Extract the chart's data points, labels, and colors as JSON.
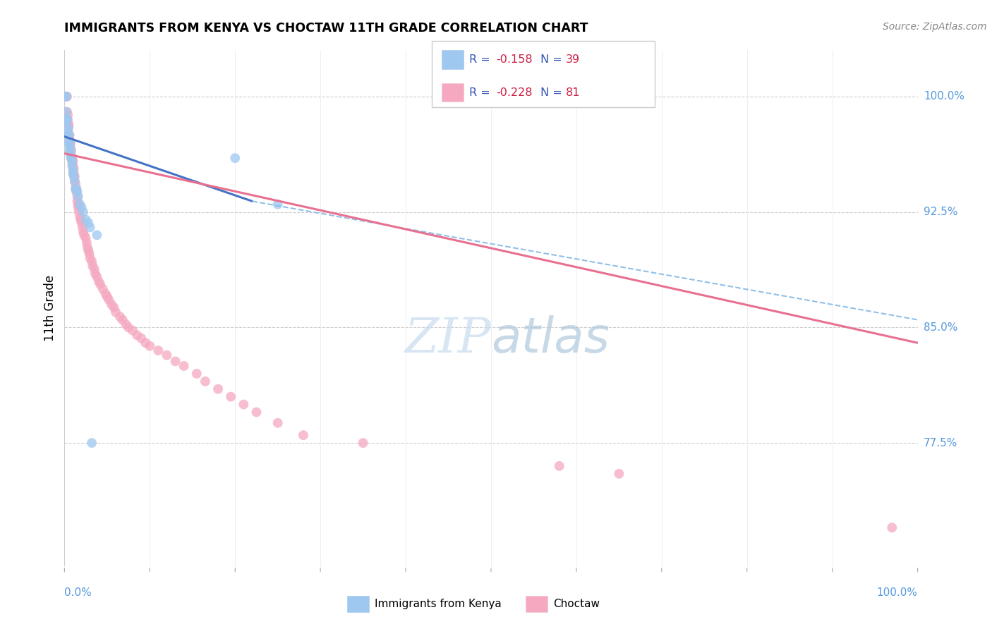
{
  "title": "IMMIGRANTS FROM KENYA VS CHOCTAW 11TH GRADE CORRELATION CHART",
  "source": "Source: ZipAtlas.com",
  "ylabel": "11th Grade",
  "y_tick_labels": [
    "100.0%",
    "92.5%",
    "85.0%",
    "77.5%"
  ],
  "y_tick_values": [
    1.0,
    0.925,
    0.85,
    0.775
  ],
  "blue_color": "#9EC8F0",
  "pink_color": "#F5A8C0",
  "blue_line_color": "#4472C4",
  "pink_line_color": "#E87090",
  "blue_dashed_color": "#90C0E8",
  "right_label_color": "#5599DD",
  "kenya_x": [
    0.001,
    0.002,
    0.002,
    0.003,
    0.003,
    0.003,
    0.004,
    0.004,
    0.004,
    0.005,
    0.005,
    0.005,
    0.006,
    0.006,
    0.006,
    0.007,
    0.007,
    0.008,
    0.008,
    0.009,
    0.009,
    0.01,
    0.01,
    0.011,
    0.012,
    0.013,
    0.014,
    0.015,
    0.016,
    0.018,
    0.02,
    0.022,
    0.025,
    0.028,
    0.03,
    0.032,
    0.038,
    0.2,
    0.25
  ],
  "kenya_y": [
    1.0,
    1.0,
    0.99,
    0.985,
    0.985,
    0.985,
    0.98,
    0.978,
    0.975,
    0.975,
    0.975,
    0.97,
    0.97,
    0.968,
    0.965,
    0.965,
    0.962,
    0.96,
    0.96,
    0.958,
    0.955,
    0.952,
    0.95,
    0.948,
    0.945,
    0.94,
    0.94,
    0.938,
    0.935,
    0.93,
    0.928,
    0.925,
    0.92,
    0.918,
    0.915,
    0.775,
    0.91,
    0.96,
    0.93
  ],
  "choctaw_x": [
    0.002,
    0.003,
    0.003,
    0.004,
    0.004,
    0.005,
    0.005,
    0.006,
    0.006,
    0.007,
    0.007,
    0.008,
    0.008,
    0.009,
    0.009,
    0.01,
    0.01,
    0.011,
    0.011,
    0.012,
    0.012,
    0.013,
    0.013,
    0.014,
    0.014,
    0.015,
    0.015,
    0.016,
    0.016,
    0.017,
    0.018,
    0.019,
    0.02,
    0.021,
    0.022,
    0.023,
    0.025,
    0.026,
    0.027,
    0.028,
    0.029,
    0.03,
    0.032,
    0.033,
    0.035,
    0.036,
    0.038,
    0.04,
    0.042,
    0.045,
    0.048,
    0.05,
    0.052,
    0.055,
    0.058,
    0.06,
    0.065,
    0.068,
    0.072,
    0.075,
    0.08,
    0.085,
    0.09,
    0.095,
    0.1,
    0.11,
    0.12,
    0.13,
    0.14,
    0.155,
    0.165,
    0.18,
    0.195,
    0.21,
    0.225,
    0.25,
    0.28,
    0.35,
    0.58,
    0.65,
    0.97
  ],
  "choctaw_y": [
    1.0,
    1.0,
    0.99,
    0.988,
    0.985,
    0.982,
    0.98,
    0.975,
    0.972,
    0.97,
    0.968,
    0.965,
    0.962,
    0.96,
    0.958,
    0.958,
    0.955,
    0.953,
    0.95,
    0.948,
    0.945,
    0.943,
    0.94,
    0.94,
    0.938,
    0.935,
    0.932,
    0.93,
    0.928,
    0.925,
    0.922,
    0.92,
    0.918,
    0.915,
    0.912,
    0.91,
    0.908,
    0.905,
    0.902,
    0.9,
    0.898,
    0.895,
    0.893,
    0.89,
    0.888,
    0.885,
    0.883,
    0.88,
    0.878,
    0.875,
    0.872,
    0.87,
    0.868,
    0.865,
    0.863,
    0.86,
    0.857,
    0.855,
    0.852,
    0.85,
    0.848,
    0.845,
    0.843,
    0.84,
    0.838,
    0.835,
    0.832,
    0.828,
    0.825,
    0.82,
    0.815,
    0.81,
    0.805,
    0.8,
    0.795,
    0.788,
    0.78,
    0.775,
    0.76,
    0.755,
    0.72
  ],
  "watermark_zip": "ZIP",
  "watermark_atlas": "atlas",
  "watermark_color_zip": "#C8DCF0",
  "watermark_color_atlas": "#B0C8DC"
}
